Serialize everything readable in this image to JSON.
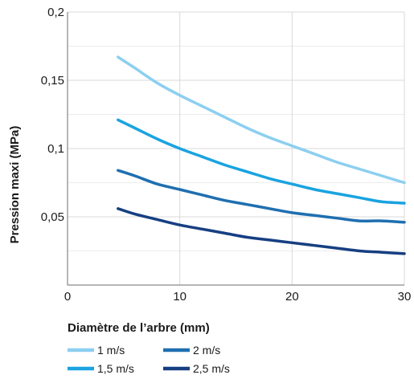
{
  "chart_data": {
    "type": "line",
    "title": "",
    "xlabel": "Diamètre de l’arbre (mm)",
    "ylabel": "Pression maxi (MPa)",
    "xlim": [
      0,
      30
    ],
    "ylim": [
      0,
      0.2
    ],
    "x_ticks": [
      0,
      10,
      20,
      30
    ],
    "x_tick_labels": [
      "0",
      "10",
      "20",
      "30"
    ],
    "y_ticks": [
      0.05,
      0.1,
      0.15,
      0.2
    ],
    "y_tick_labels": [
      "0,05",
      "0,1",
      "0,15",
      "0,2"
    ],
    "grid": true,
    "legend_position": "bottom",
    "series": [
      {
        "name": "1 m/s",
        "color": "#8ccff0",
        "x": [
          4.5,
          6,
          8,
          10,
          12,
          14,
          16,
          18,
          20,
          22,
          24,
          26,
          28,
          30
        ],
        "y": [
          0.167,
          0.159,
          0.148,
          0.139,
          0.131,
          0.123,
          0.115,
          0.108,
          0.102,
          0.096,
          0.09,
          0.085,
          0.08,
          0.075
        ]
      },
      {
        "name": "1,5 m/s",
        "color": "#1aa3e0",
        "x": [
          4.5,
          6,
          8,
          10,
          12,
          14,
          16,
          18,
          20,
          22,
          24,
          26,
          28,
          30
        ],
        "y": [
          0.121,
          0.115,
          0.107,
          0.1,
          0.094,
          0.088,
          0.083,
          0.078,
          0.074,
          0.07,
          0.067,
          0.064,
          0.061,
          0.06
        ]
      },
      {
        "name": "2 m/s",
        "color": "#1f6fb0",
        "x": [
          4.5,
          6,
          8,
          10,
          12,
          14,
          16,
          18,
          20,
          22,
          24,
          26,
          28,
          30
        ],
        "y": [
          0.084,
          0.08,
          0.074,
          0.07,
          0.066,
          0.062,
          0.059,
          0.056,
          0.053,
          0.051,
          0.049,
          0.047,
          0.047,
          0.046
        ]
      },
      {
        "name": "2,5 m/s",
        "color": "#163f82",
        "x": [
          4.5,
          6,
          8,
          10,
          12,
          14,
          16,
          18,
          20,
          22,
          24,
          26,
          28,
          30
        ],
        "y": [
          0.056,
          0.052,
          0.048,
          0.044,
          0.041,
          0.038,
          0.035,
          0.033,
          0.031,
          0.029,
          0.027,
          0.025,
          0.024,
          0.023
        ]
      }
    ]
  }
}
